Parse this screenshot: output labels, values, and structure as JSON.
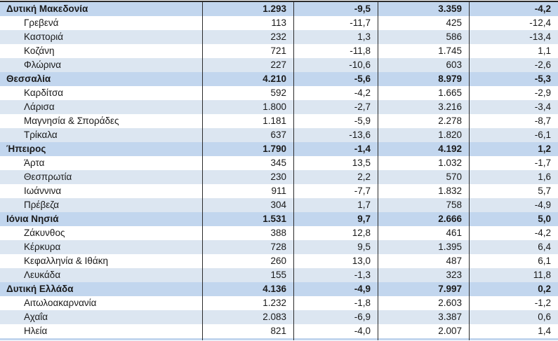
{
  "colors": {
    "region_row_bg": "#c2d6ee",
    "alt_row_bg": "#dce6f1",
    "white_row_bg": "#ffffff",
    "border": "#2b2b2b",
    "text": "#1a1a1a"
  },
  "table": {
    "description": "Greek regional statistics table fragment, 4 numeric columns (values with Greek number formatting: dot thousands separator, comma decimals)",
    "rows": [
      {
        "label": "Δυτική Μακεδονία",
        "level": "region",
        "shade": "header",
        "values": [
          "1.293",
          "-9,5",
          "3.359",
          "-4,2"
        ]
      },
      {
        "label": "Γρεβενά",
        "level": "sub",
        "shade": "white",
        "values": [
          "113",
          "-11,7",
          "425",
          "-12,4"
        ]
      },
      {
        "label": "Καστοριά",
        "level": "sub",
        "shade": "blue",
        "values": [
          "232",
          "1,3",
          "586",
          "-13,4"
        ]
      },
      {
        "label": "Κοζάνη",
        "level": "sub",
        "shade": "white",
        "values": [
          "721",
          "-11,8",
          "1.745",
          "1,1"
        ]
      },
      {
        "label": "Φλώρινα",
        "level": "sub",
        "shade": "blue",
        "values": [
          "227",
          "-10,6",
          "603",
          "-2,6"
        ]
      },
      {
        "label": "Θεσσαλία",
        "level": "region",
        "shade": "header",
        "values": [
          "4.210",
          "-5,6",
          "8.979",
          "-5,3"
        ]
      },
      {
        "label": "Καρδίτσα",
        "level": "sub",
        "shade": "white",
        "values": [
          "592",
          "-4,2",
          "1.665",
          "-2,9"
        ]
      },
      {
        "label": "Λάρισα",
        "level": "sub",
        "shade": "blue",
        "values": [
          "1.800",
          "-2,7",
          "3.216",
          "-3,4"
        ]
      },
      {
        "label": "Μαγνησία & Σποράδες",
        "level": "sub",
        "shade": "white",
        "values": [
          "1.181",
          "-5,9",
          "2.278",
          "-8,7"
        ]
      },
      {
        "label": "Τρίκαλα",
        "level": "sub",
        "shade": "blue",
        "values": [
          "637",
          "-13,6",
          "1.820",
          "-6,1"
        ]
      },
      {
        "label": "Ήπειρος",
        "level": "region",
        "shade": "header",
        "values": [
          "1.790",
          "-1,4",
          "4.192",
          "1,2"
        ]
      },
      {
        "label": "Άρτα",
        "level": "sub",
        "shade": "white",
        "values": [
          "345",
          "13,5",
          "1.032",
          "-1,7"
        ]
      },
      {
        "label": "Θεσπρωτία",
        "level": "sub",
        "shade": "blue",
        "values": [
          "230",
          "2,2",
          "570",
          "1,6"
        ]
      },
      {
        "label": "Ιωάννινα",
        "level": "sub",
        "shade": "white",
        "values": [
          "911",
          "-7,7",
          "1.832",
          "5,7"
        ]
      },
      {
        "label": "Πρέβεζα",
        "level": "sub",
        "shade": "blue",
        "values": [
          "304",
          "1,7",
          "758",
          "-4,9"
        ]
      },
      {
        "label": "Ιόνια Νησιά",
        "level": "region",
        "shade": "header",
        "values": [
          "1.531",
          "9,7",
          "2.666",
          "5,0"
        ]
      },
      {
        "label": "Ζάκυνθος",
        "level": "sub",
        "shade": "white",
        "values": [
          "388",
          "12,8",
          "461",
          "-4,2"
        ]
      },
      {
        "label": "Κέρκυρα",
        "level": "sub",
        "shade": "blue",
        "values": [
          "728",
          "9,5",
          "1.395",
          "6,4"
        ]
      },
      {
        "label": "Κεφαλληνία & Ιθάκη",
        "level": "sub",
        "shade": "white",
        "values": [
          "260",
          "13,0",
          "487",
          "6,1"
        ]
      },
      {
        "label": "Λευκάδα",
        "level": "sub",
        "shade": "blue",
        "values": [
          "155",
          "-1,3",
          "323",
          "11,8"
        ]
      },
      {
        "label": "Δυτική Ελλάδα",
        "level": "region",
        "shade": "header",
        "values": [
          "4.136",
          "-4,9",
          "7.997",
          "0,2"
        ]
      },
      {
        "label": "Αιτωλοακαρνανία",
        "level": "sub",
        "shade": "white",
        "values": [
          "1.232",
          "-1,8",
          "2.603",
          "-1,2"
        ]
      },
      {
        "label": "Αχαΐα",
        "level": "sub",
        "shade": "blue",
        "values": [
          "2.083",
          "-6,9",
          "3.387",
          "0,6"
        ]
      },
      {
        "label": "Ηλεία",
        "level": "sub",
        "shade": "white",
        "values": [
          "821",
          "-4,0",
          "2.007",
          "1,4"
        ]
      }
    ],
    "partial_next_row": {
      "shade": "header",
      "note": "cut-off sliver of next region header row at bottom edge"
    }
  }
}
